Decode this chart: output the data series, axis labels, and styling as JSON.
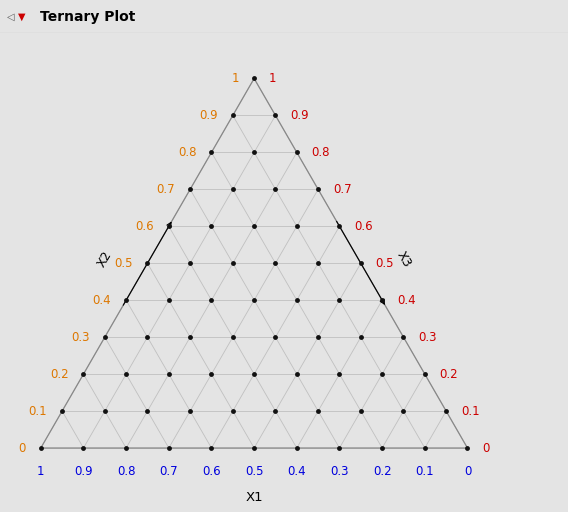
{
  "title": "Ternary Plot",
  "xlabel": "X1",
  "x2label": "X2",
  "x3label": "X3",
  "n_divisions": 10,
  "grid_color": "#c0c0c0",
  "border_color": "#888888",
  "point_color": "#222222",
  "bg_color": "#e4e4e4",
  "plot_bg_color": "#e4e4e4",
  "x1_label_color": "#0000dd",
  "x2_label_color": "#dd7700",
  "x3_label_color": "#cc0000",
  "tick_label_fontsize": 8.5,
  "axis_label_fontsize": 9,
  "title_fontsize": 10,
  "point_size": 3.5,
  "border_lw": 0.9,
  "grid_lw": 0.6
}
